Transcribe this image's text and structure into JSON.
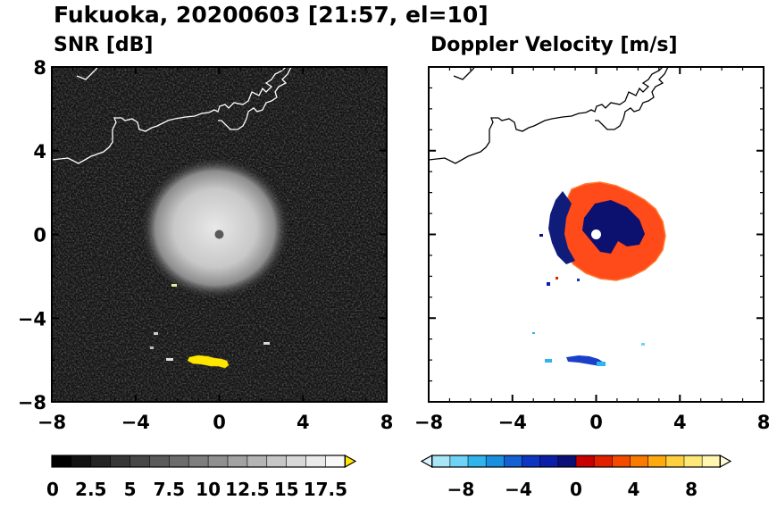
{
  "title": "Fukuoka, 20200603 [21:57, el=10]",
  "chart_data": [
    {
      "type": "heatmap",
      "title": "SNR [dB]",
      "xlim": [
        -8,
        8
      ],
      "ylim": [
        -8,
        8
      ],
      "xticks": [
        "−8",
        "−4",
        "0",
        "4",
        "8"
      ],
      "yticks": [
        "8",
        "4",
        "0",
        "−4",
        "−8"
      ],
      "background_color": "#141414",
      "colorbar": {
        "min": 0,
        "max": 18.75,
        "step": 1.25,
        "extend": "max",
        "ticks": [
          0,
          2.5,
          5,
          7.5,
          10,
          12.5,
          15,
          17.5
        ],
        "tick_labels": [
          "0",
          "2.5",
          "5",
          "7.5",
          "10",
          "12.5",
          "15",
          "17.5"
        ],
        "colors": [
          "#000000",
          "#121212",
          "#242424",
          "#363636",
          "#484848",
          "#5a5a5a",
          "#6c6c6c",
          "#7e7e7e",
          "#909090",
          "#a2a2a2",
          "#b4b4b4",
          "#c6c6c6",
          "#d8d8d8",
          "#eaeaea",
          "#f8f8f8"
        ],
        "over_color": "#ffe600"
      },
      "features": [
        {
          "kind": "echo-disc",
          "x": -0.2,
          "y": 0.3,
          "radius": 3.4,
          "color": "#b8b8b8"
        },
        {
          "kind": "radar-site",
          "x": 0,
          "y": 0,
          "color": "#5a5a5a"
        },
        {
          "kind": "strong-echo",
          "x": -0.5,
          "y": -6.1,
          "color": "#ffe600"
        }
      ]
    },
    {
      "type": "heatmap",
      "title": "Doppler Velocity [m/s]",
      "xlim": [
        -8,
        8
      ],
      "ylim": [
        -8,
        8
      ],
      "xticks": [
        "−8",
        "−4",
        "0",
        "4",
        "8"
      ],
      "yticks": [],
      "background_color": "#ffffff",
      "colorbar": {
        "min": -10,
        "max": 10,
        "step": 1.25,
        "extend": "both",
        "ticks": [
          -8,
          -4,
          0,
          4,
          8
        ],
        "tick_labels": [
          "−8",
          "−4",
          "0",
          "4",
          "8"
        ],
        "colors": [
          "#a8e6f8",
          "#6fd3f5",
          "#2fb5ec",
          "#1a8fe0",
          "#1560d2",
          "#0e36c0",
          "#0a1ea8",
          "#0a1078",
          "#c80000",
          "#e22000",
          "#f44a00",
          "#fa7a00",
          "#fdaa10",
          "#fed040",
          "#fee878",
          "#fff6b0"
        ],
        "under_color": "#d8f6ff",
        "over_color": "#fffbd6"
      },
      "features": [
        {
          "kind": "receding-ring",
          "x": 0.3,
          "y": 0.2,
          "radius": 3.2,
          "color": "#ff4a1a"
        },
        {
          "kind": "approaching-core",
          "x": 0.5,
          "y": 0.4,
          "color": "#0c106e"
        },
        {
          "kind": "radar-site",
          "x": 0,
          "y": 0,
          "color": "#ffffff"
        },
        {
          "kind": "approaching-band",
          "x": -1.0,
          "y": -6.0,
          "color": "#1a3fc8"
        }
      ]
    }
  ]
}
